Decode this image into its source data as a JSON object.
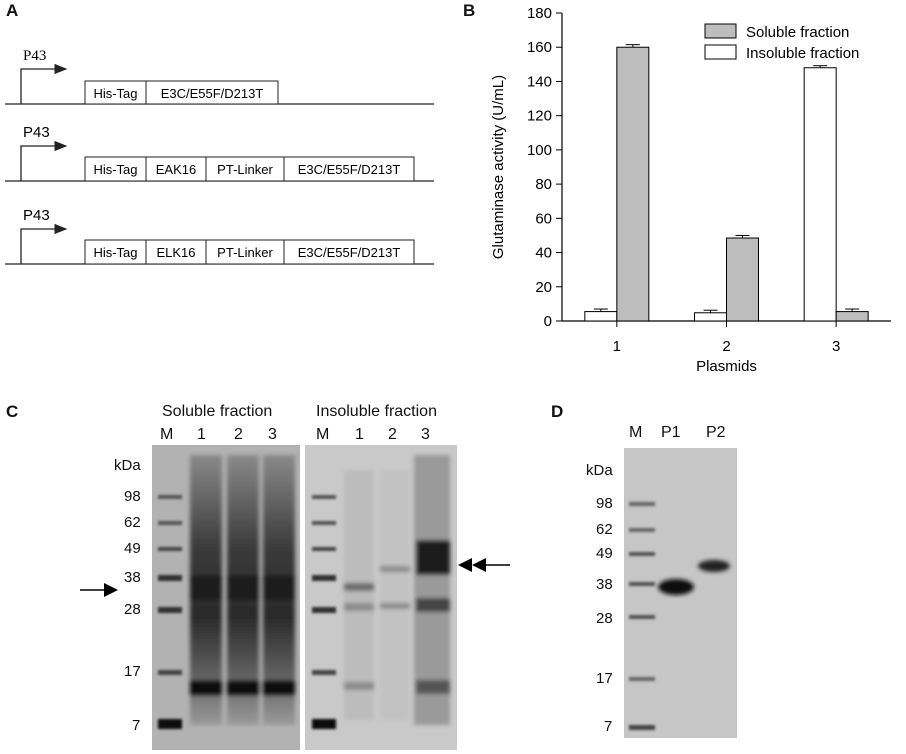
{
  "panels": {
    "a": {
      "letter": "A"
    },
    "b": {
      "letter": "B"
    },
    "c": {
      "letter": "C"
    },
    "d": {
      "letter": "D"
    }
  },
  "constructs": [
    {
      "promoter": "P43",
      "boxes": [
        "His-Tag",
        "E3C/E55F/D213T"
      ]
    },
    {
      "promoter": "P43",
      "boxes": [
        "His-Tag",
        "EAK16",
        "PT-Linker",
        "E3C/E55F/D213T"
      ]
    },
    {
      "promoter": "P43",
      "boxes": [
        "His-Tag",
        "ELK16",
        "PT-Linker",
        "E3C/E55F/D213T"
      ]
    }
  ],
  "chart_data": {
    "type": "bar",
    "categories": [
      "1",
      "2",
      "3"
    ],
    "series": [
      {
        "name": "Insoluble fraction",
        "color": "#ffffff",
        "values": [
          5.5,
          4.8,
          148
        ],
        "errors": [
          1.5,
          1.5,
          1.2
        ]
      },
      {
        "name": "Soluble fraction",
        "color": "#bdbdbd",
        "values": [
          160,
          48.5,
          5.5
        ],
        "errors": [
          1.5,
          1.5,
          1.5
        ]
      }
    ],
    "title": "",
    "xlabel": "Plasmids",
    "ylabel": "Glutaminase activity (U/mL)",
    "ylim": [
      0,
      180
    ],
    "yticks": [
      "0",
      "20",
      "40",
      "60",
      "80",
      "100",
      "120",
      "140",
      "160",
      "180"
    ],
    "legend": [
      "Soluble fraction",
      "Insoluble fraction"
    ],
    "legend_position": "top-right",
    "grid": false
  },
  "gel_c": {
    "soluble_title": "Soluble fraction",
    "insoluble_title": "Insoluble fraction",
    "soluble_lanes": [
      "M",
      "1",
      "2",
      "3"
    ],
    "insoluble_lanes": [
      "M",
      "1",
      "2",
      "3"
    ],
    "kda_label": "kDa",
    "markers": [
      "98",
      "62",
      "49",
      "38",
      "28",
      "17",
      "7"
    ]
  },
  "gel_d": {
    "lanes": [
      "M",
      "P1",
      "P2"
    ],
    "kda_label": "kDa",
    "markers": [
      "98",
      "62",
      "49",
      "38",
      "28",
      "17",
      "7"
    ]
  }
}
